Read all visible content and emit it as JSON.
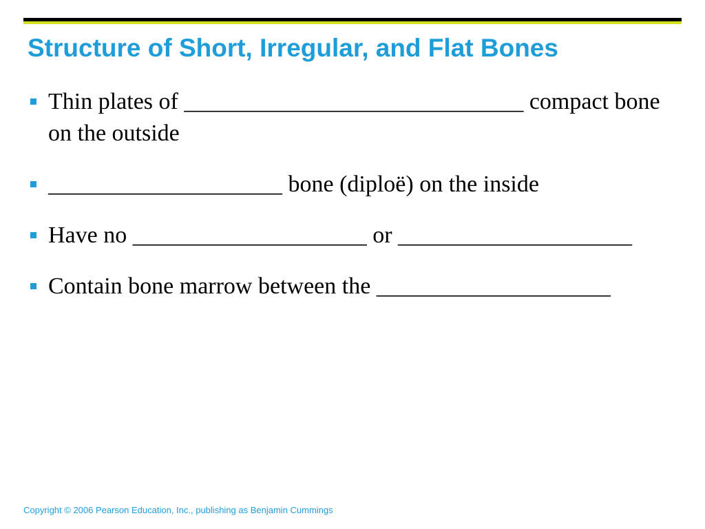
{
  "colors": {
    "top_rule": "#000000",
    "accent_rule": "#d7df23",
    "title": "#1f9dd9",
    "bullet_marker": "#1f9dd9",
    "body_text": "#000000",
    "copyright": "#1f9dd9",
    "background": "#ffffff"
  },
  "typography": {
    "title_font": "Arial",
    "title_weight": "bold",
    "title_size_pt": 28,
    "body_font": "Times New Roman",
    "body_size_pt": 26,
    "copyright_size_pt": 10
  },
  "title": "Structure of Short, Irregular, and Flat Bones",
  "bullets": [
    "Thin plates of _____________________________ compact bone on the outside",
    "____________________ bone (diploë) on the inside",
    "Have no ____________________ or ____________________",
    " Contain bone marrow between the ____________________"
  ],
  "copyright": "Copyright © 2006 Pearson Education, Inc., publishing as Benjamin Cummings"
}
